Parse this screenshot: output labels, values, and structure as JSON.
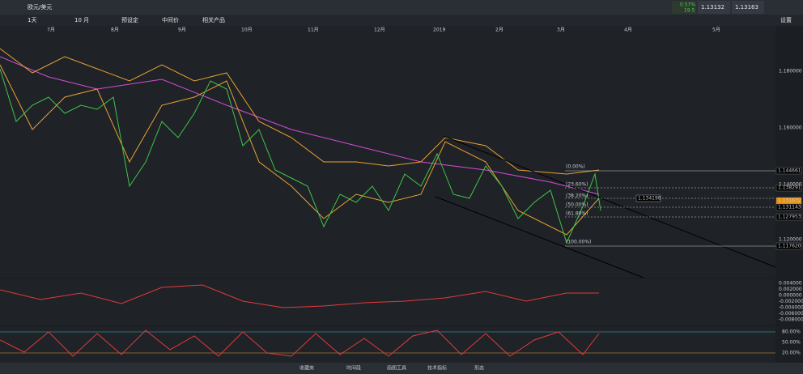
{
  "header": {
    "symbol": "欧元/美元",
    "change_pct": "0.57%",
    "change_pts": "19.5",
    "sell": "1.13132",
    "buy": "1.13163"
  },
  "toolbar": {
    "interval": "1天",
    "range": "10 月",
    "preset": "预设定",
    "price_type": "中间价",
    "related": "相关产品",
    "settings": "设置"
  },
  "months": [
    "7月",
    "8月",
    "9月",
    "10月",
    "11月",
    "12月",
    "2019",
    "2月",
    "3月",
    "4月",
    "5月"
  ],
  "price_axis": [
    "1.180000",
    "1.160000",
    "1.140000",
    "1.120000"
  ],
  "price_tags": [
    "1.144661",
    "1.138291",
    "1.131632",
    "1.131143",
    "1.127953",
    "1.117620"
  ],
  "cursor_tag": "1.134198",
  "fib_labels": [
    "(0.00%)",
    "(23.60%)",
    "(38.20%)",
    "(50.00%)",
    "(61.80%)",
    "(100.00%)"
  ],
  "macd_axis": [
    "0.004000",
    "0.002000",
    "0.000000",
    "-0.002000",
    "-0.004000",
    "-0.006000",
    "-0.008000"
  ],
  "stoch_axis": [
    "80.00%",
    "50.00%",
    "20.00%"
  ],
  "bottom": [
    "收藏夹",
    "时间段",
    "画图工具",
    "技术指标",
    "形态"
  ]
}
